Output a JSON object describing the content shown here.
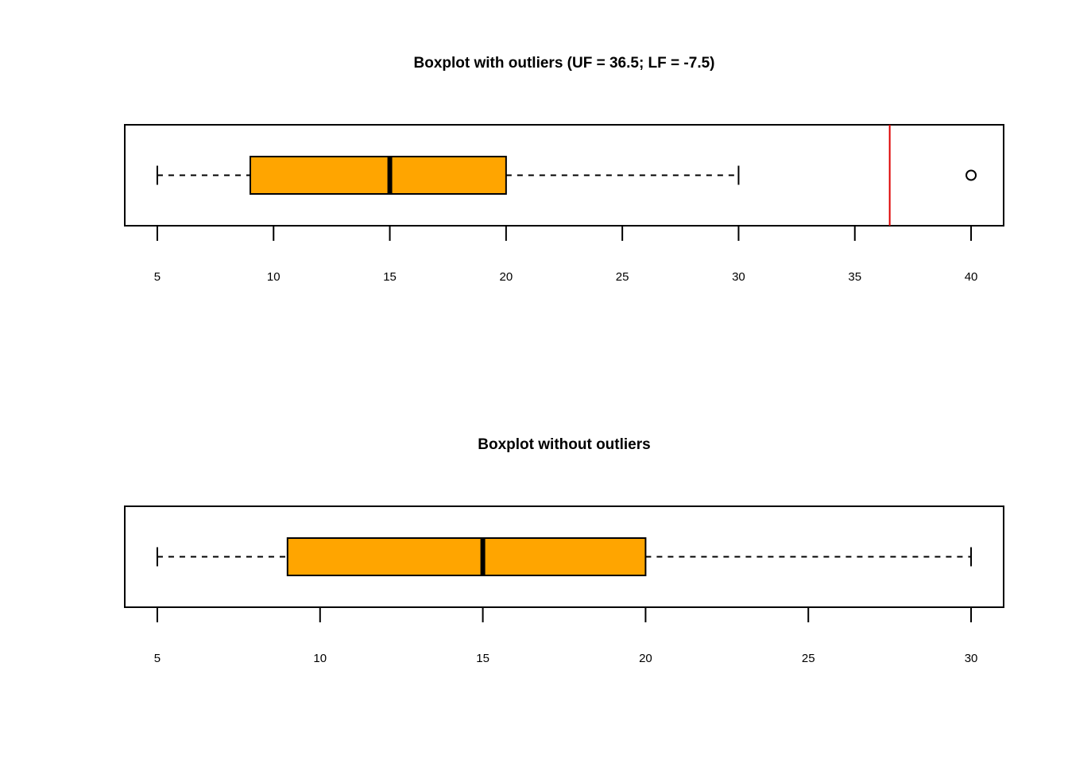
{
  "chart_data": [
    {
      "type": "boxplot",
      "orientation": "horizontal",
      "title": "Boxplot with outliers (UF = 36.5; LF = -7.5)",
      "xlim": [
        3.6,
        41.4
      ],
      "xticks": [
        5,
        10,
        15,
        20,
        25,
        30,
        35,
        40
      ],
      "xtick_labels": [
        "5",
        "10",
        "15",
        "20",
        "25",
        "30",
        "35",
        "40"
      ],
      "box": {
        "whisker_low": 5,
        "q1": 9,
        "median": 15,
        "q3": 20,
        "whisker_high": 30
      },
      "outliers": [
        40
      ],
      "reference_line": {
        "value": 36.5,
        "label": "UF"
      },
      "colors": {
        "box_fill": "#FFA500",
        "reference_line": "#DD0000",
        "stroke": "#000000"
      }
    },
    {
      "type": "boxplot",
      "orientation": "horizontal",
      "title": "Boxplot without outliers",
      "xlim": [
        4.0,
        31.0
      ],
      "xticks": [
        5,
        10,
        15,
        20,
        25,
        30
      ],
      "xtick_labels": [
        "5",
        "10",
        "15",
        "20",
        "25",
        "30"
      ],
      "box": {
        "whisker_low": 5,
        "q1": 9,
        "median": 15,
        "q3": 20,
        "whisker_high": 30
      },
      "outliers": [],
      "colors": {
        "box_fill": "#FFA500",
        "stroke": "#000000"
      }
    }
  ]
}
